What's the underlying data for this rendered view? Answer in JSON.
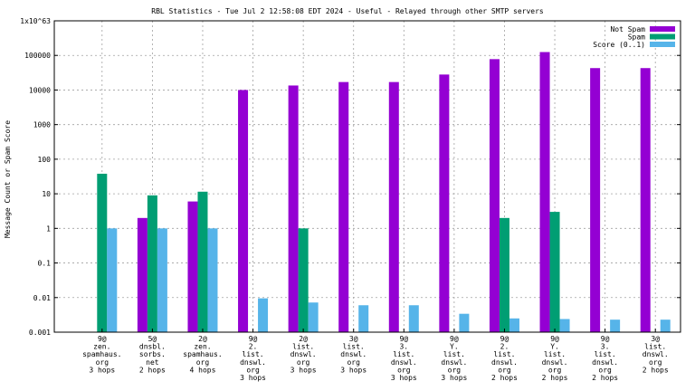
{
  "chart_data": {
    "type": "bar",
    "title": "RBL Statistics - Tue Jul  2 12:58:08 EDT 2024 - Useful - Relayed through other SMTP servers",
    "ylabel": "Message Count or Spam Score",
    "xlabel": "",
    "yscale": "log",
    "ylim": [
      0.001,
      1e+63
    ],
    "ytick_labels": [
      "0.001",
      "0.01",
      "0.1",
      "1",
      "10",
      "100",
      "1000",
      "10000",
      "100000",
      "1x10^63"
    ],
    "grid": true,
    "legend_position": "top-right",
    "categories": [
      [
        "9@",
        "zen.",
        "spamhaus.",
        "org",
        "3 hops"
      ],
      [
        "5@",
        "dnsbl.",
        "sorbs.",
        "net",
        "2 hops"
      ],
      [
        "2@",
        "zen.",
        "spamhaus.",
        "org",
        "4 hops"
      ],
      [
        "9@",
        "2.",
        "list.",
        "dnswl.",
        "org",
        "3 hops"
      ],
      [
        "2@",
        "list.",
        "dnswl.",
        "org",
        "3 hops"
      ],
      [
        "3@",
        "list.",
        "dnswl.",
        "org",
        "3 hops"
      ],
      [
        "9@",
        "3.",
        "list.",
        "dnswl.",
        "org",
        "3 hops"
      ],
      [
        "9@",
        "Y.",
        "list.",
        "dnswl.",
        "org",
        "3 hops"
      ],
      [
        "9@",
        "2.",
        "list.",
        "dnswl.",
        "org",
        "2 hops"
      ],
      [
        "9@",
        "Y.",
        "list.",
        "dnswl.",
        "org",
        "2 hops"
      ],
      [
        "9@",
        "3.",
        "list.",
        "dnswl.",
        "org",
        "2 hops"
      ],
      [
        "3@",
        "list.",
        "dnswl.",
        "org",
        "2 hops"
      ]
    ],
    "series": [
      {
        "name": "Not Spam",
        "color": "#9400d3",
        "values": [
          null,
          2,
          6,
          10000,
          13500,
          17000,
          17000,
          28000,
          78000,
          125000,
          43000,
          43000
        ]
      },
      {
        "name": "Spam",
        "color": "#009e73",
        "values": [
          38,
          9,
          11.5,
          null,
          1,
          null,
          null,
          null,
          2,
          3,
          null,
          null
        ]
      },
      {
        "name": "Score (0..1)",
        "color": "#56b4e9",
        "values": [
          1,
          1,
          1,
          0.0095,
          0.0072,
          0.006,
          0.006,
          0.0034,
          0.0025,
          0.0024,
          0.0023,
          0.0023
        ]
      }
    ]
  }
}
